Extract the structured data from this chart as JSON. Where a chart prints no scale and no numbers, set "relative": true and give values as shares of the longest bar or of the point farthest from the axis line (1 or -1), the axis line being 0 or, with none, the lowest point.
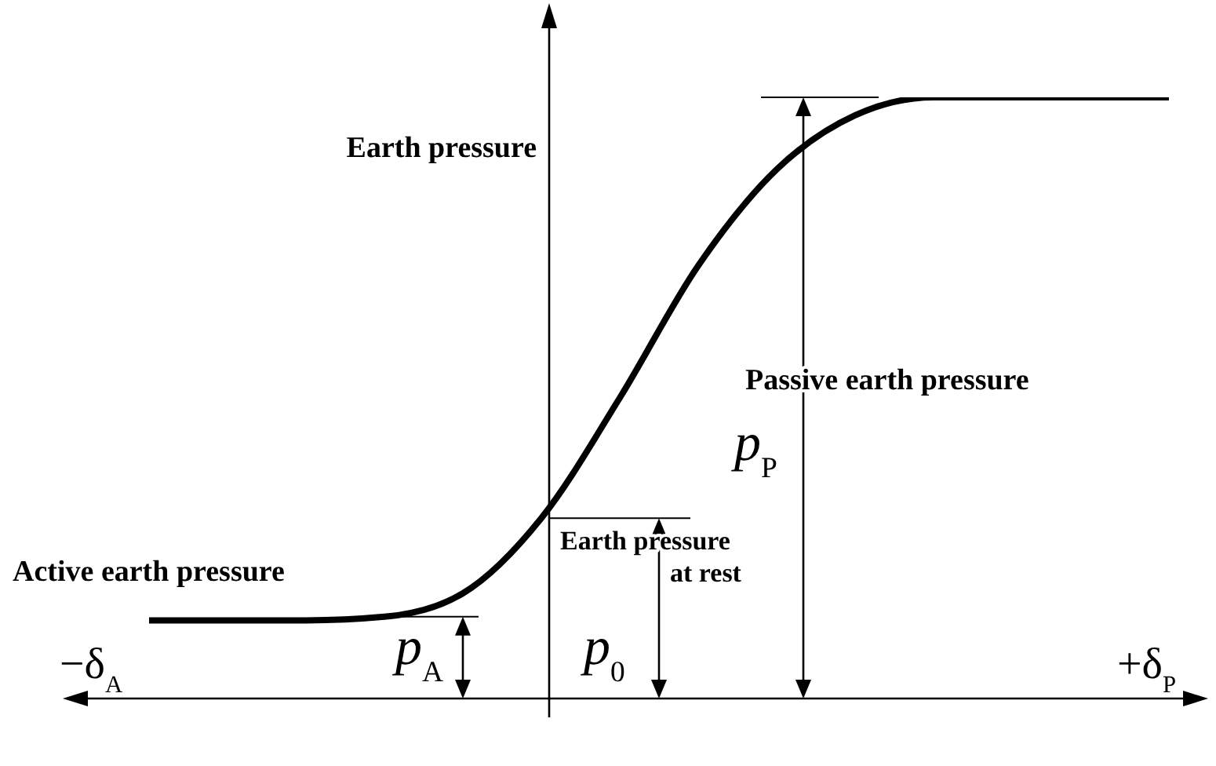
{
  "chart_data": {
    "type": "line",
    "relative": true,
    "ylabel": "Earth pressure",
    "categories": [
      null,
      null,
      null,
      null,
      null,
      null,
      null,
      null,
      null,
      null,
      null,
      null,
      null,
      null
    ],
    "series": [
      {
        "color": "#000000",
        "values": [
          0.13,
          0.13,
          0.13,
          0.136,
          0.175,
          0.3,
          0.5,
          0.72,
          0.88,
          0.97,
          1,
          1,
          1,
          1
        ]
      }
    ],
    "annotations": [
      "Active earth pressure",
      "Passive earth pressure",
      "Earth pressure at rest",
      "p$_{A}$",
      "p$_{0}$",
      "p$_{P}$",
      "−δ$_{A}$",
      "+δ$_{P}$"
    ],
    "grid": false,
    "marker": "none",
    "line_style": "solid"
  }
}
